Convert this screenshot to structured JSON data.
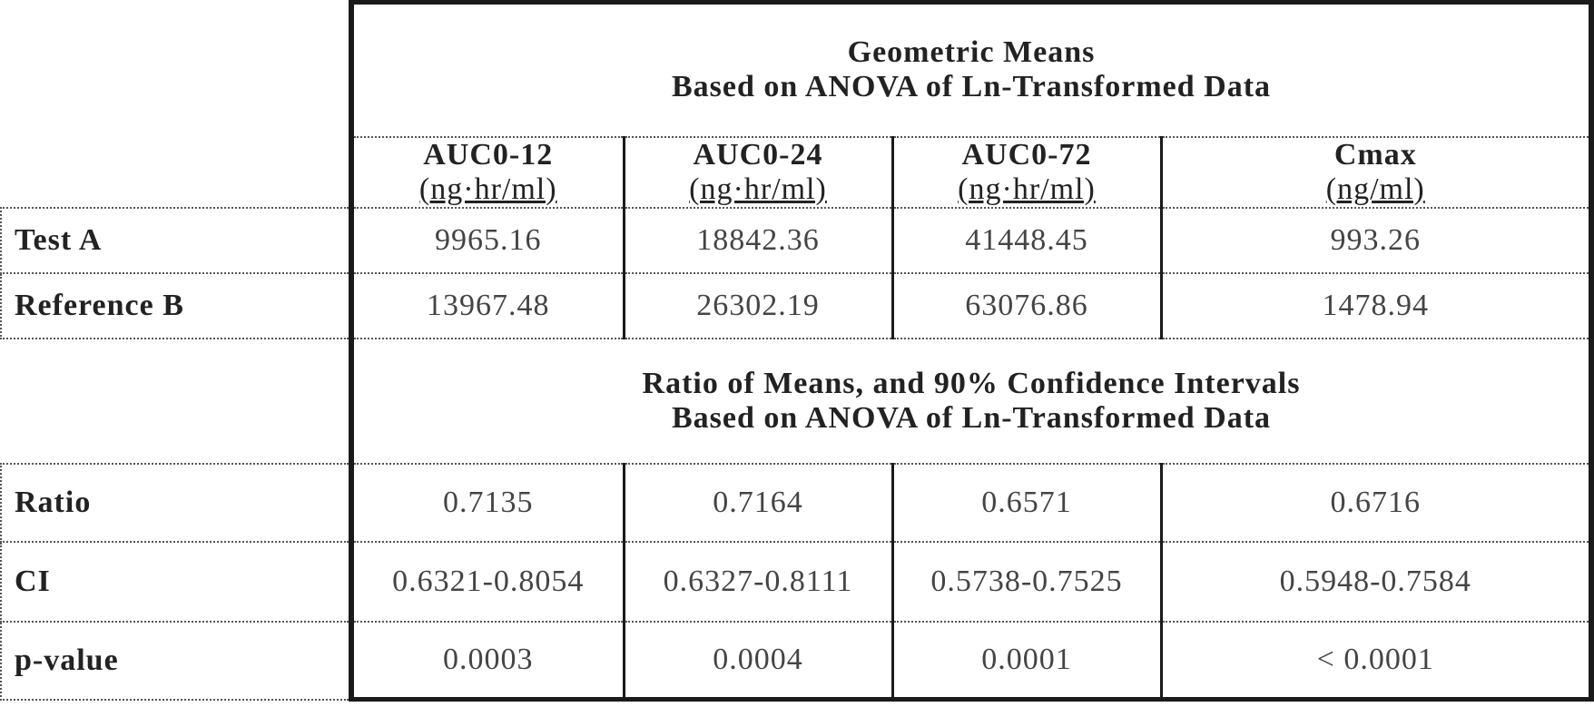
{
  "section1": {
    "title_line1": "Geometric Means",
    "title_line2": "Based on ANOVA of Ln-Transformed Data"
  },
  "columns": [
    {
      "name": "AUC0-12",
      "unit": "(ng·hr/ml)"
    },
    {
      "name": "AUC0-24",
      "unit": "(ng·hr/ml)"
    },
    {
      "name": "AUC0-72",
      "unit": "(ng·hr/ml)"
    },
    {
      "name": "Cmax",
      "unit": "(ng/ml)"
    }
  ],
  "means_rows": [
    {
      "label": "Test A",
      "values": [
        "9965.16",
        "18842.36",
        "41448.45",
        "993.26"
      ]
    },
    {
      "label": "Reference B",
      "values": [
        "13967.48",
        "26302.19",
        "63076.86",
        "1478.94"
      ]
    }
  ],
  "section2": {
    "title_line1": "Ratio of Means, and 90% Confidence Intervals",
    "title_line2": "Based on ANOVA of Ln-Transformed Data"
  },
  "ratio_rows": [
    {
      "label": "Ratio",
      "values": [
        "0.7135",
        "0.7164",
        "0.6571",
        "0.6716"
      ]
    },
    {
      "label": "CI",
      "values": [
        "0.6321-0.8054",
        "0.6327-0.8111",
        "0.5738-0.7525",
        "0.5948-0.7584"
      ]
    },
    {
      "label": "p-value",
      "values": [
        "0.0003",
        "0.0004",
        "0.0001",
        "< 0.0001"
      ]
    }
  ]
}
